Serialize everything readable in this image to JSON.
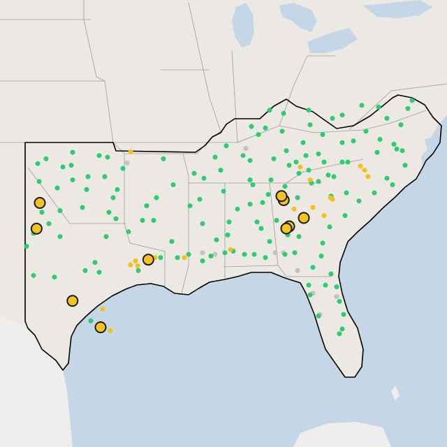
{
  "map": {
    "colors": {
      "water": "#c5d7e6",
      "land": "#ece8e3",
      "land_outside": "#efeeec",
      "state_border": "#9b9b9b",
      "region_border": "#000000",
      "green_dot": "#2ecc71",
      "yellow_dot": "#f4c01a",
      "gray_dot": "#c2c2c2",
      "large_dot_fill": "#f6c21c",
      "large_dot_stroke": "#1a1a1a"
    },
    "legend": []
  },
  "markers": {
    "large": [
      {
        "lon": -101.85,
        "lat": 33.58
      },
      {
        "lon": -102.08,
        "lat": 31.99
      },
      {
        "lon": -94.08,
        "lat": 30.08
      },
      {
        "lon": -99.51,
        "lat": 27.53
      },
      {
        "lon": -97.5,
        "lat": 25.9
      },
      {
        "lon": -84.39,
        "lat": 33.75
      },
      {
        "lon": -84.55,
        "lat": 34.0
      },
      {
        "lon": -84.0,
        "lat": 32.13
      },
      {
        "lon": -82.95,
        "lat": 32.65
      },
      {
        "lon": -84.2,
        "lat": 32.0
      }
    ],
    "yellow": [
      {
        "lon": -95.34,
        "lat": 36.73
      },
      {
        "lon": -95.0,
        "lat": 30.0
      },
      {
        "lon": -94.85,
        "lat": 29.7
      },
      {
        "lon": -95.36,
        "lat": 29.75
      },
      {
        "lon": -93.6,
        "lat": 30.2
      },
      {
        "lon": -91.5,
        "lat": 30.2
      },
      {
        "lon": -88.2,
        "lat": 30.7
      },
      {
        "lon": -97.35,
        "lat": 27.02
      },
      {
        "lon": -96.8,
        "lat": 25.7
      },
      {
        "lon": -83.65,
        "lat": 33.2
      },
      {
        "lon": -82.3,
        "lat": 33.3
      },
      {
        "lon": -80.9,
        "lat": 33.8
      },
      {
        "lon": -81.05,
        "lat": 33.9
      },
      {
        "lon": -81.5,
        "lat": 32.8
      },
      {
        "lon": -78.6,
        "lat": 35.6
      },
      {
        "lon": -78.35,
        "lat": 35.2
      },
      {
        "lon": -78.9,
        "lat": 35.85
      },
      {
        "lon": -83.2,
        "lat": 35.8
      },
      {
        "lon": -82.5,
        "lat": 35.0
      }
    ],
    "gray": [
      {
        "lon": -87.1,
        "lat": 36.95
      },
      {
        "lon": -95.6,
        "lat": 36.05
      },
      {
        "lon": -85.0,
        "lat": 30.5
      },
      {
        "lon": -84.4,
        "lat": 30.5
      },
      {
        "lon": -83.4,
        "lat": 29.4
      },
      {
        "lon": -82.3,
        "lat": 28.0
      },
      {
        "lon": -81.8,
        "lat": 26.7
      },
      {
        "lon": -80.6,
        "lat": 27.8
      },
      {
        "lon": -84.6,
        "lat": 34.1
      },
      {
        "lon": -89.3,
        "lat": 30.4
      },
      {
        "lon": -90.2,
        "lat": 30.5
      }
    ],
    "green": [
      {
        "lon": -102.0,
        "lat": 36.0
      },
      {
        "lon": -101.4,
        "lat": 36.3
      },
      {
        "lon": -100.2,
        "lat": 35.8
      },
      {
        "lon": -99.5,
        "lat": 36.7
      },
      {
        "lon": -99.6,
        "lat": 35.9
      },
      {
        "lon": -99.5,
        "lat": 35.0
      },
      {
        "lon": -98.4,
        "lat": 35.2
      },
      {
        "lon": -97.6,
        "lat": 36.5
      },
      {
        "lon": -97.2,
        "lat": 35.2
      },
      {
        "lon": -95.9,
        "lat": 35.7
      },
      {
        "lon": -96.3,
        "lat": 34.4
      },
      {
        "lon": -98.5,
        "lat": 34.4
      },
      {
        "lon": -100.6,
        "lat": 34.5
      },
      {
        "lon": -101.9,
        "lat": 34.9
      },
      {
        "lon": -101.7,
        "lat": 33.0
      },
      {
        "lon": -101.2,
        "lat": 32.3
      },
      {
        "lon": -100.4,
        "lat": 33.1
      },
      {
        "lon": -98.8,
        "lat": 33.3
      },
      {
        "lon": -96.9,
        "lat": 33.0
      },
      {
        "lon": -96.4,
        "lat": 32.6
      },
      {
        "lon": -102.3,
        "lat": 29.1
      },
      {
        "lon": -100.8,
        "lat": 29.0
      },
      {
        "lon": -98.6,
        "lat": 29.4
      },
      {
        "lon": -97.9,
        "lat": 29.9
      },
      {
        "lon": -97.6,
        "lat": 29.3
      },
      {
        "lon": -94.8,
        "lat": 29.4
      },
      {
        "lon": -93.2,
        "lat": 30.2
      },
      {
        "lon": -92.0,
        "lat": 30.2
      },
      {
        "lon": -91.2,
        "lat": 30.4
      },
      {
        "lon": -90.2,
        "lat": 30.0
      },
      {
        "lon": -89.6,
        "lat": 30.3
      },
      {
        "lon": -88.6,
        "lat": 30.5
      },
      {
        "lon": -88.0,
        "lat": 30.6
      },
      {
        "lon": -92.4,
        "lat": 31.2
      },
      {
        "lon": -93.7,
        "lat": 32.5
      },
      {
        "lon": -93.5,
        "lat": 33.9
      },
      {
        "lon": -92.3,
        "lat": 34.7
      },
      {
        "lon": -93.0,
        "lat": 36.3
      },
      {
        "lon": -90.8,
        "lat": 35.4
      },
      {
        "lon": -90.1,
        "lat": 35.1
      },
      {
        "lon": -90.2,
        "lat": 32.3
      },
      {
        "lon": -88.7,
        "lat": 34.3
      },
      {
        "lon": -88.3,
        "lat": 32.4
      },
      {
        "lon": -86.8,
        "lat": 33.5
      },
      {
        "lon": -86.3,
        "lat": 32.4
      },
      {
        "lon": -85.4,
        "lat": 31.2
      },
      {
        "lon": -86.6,
        "lat": 34.7
      },
      {
        "lon": -87.3,
        "lat": 36.5
      },
      {
        "lon": -86.8,
        "lat": 36.2
      },
      {
        "lon": -85.3,
        "lat": 35.0
      },
      {
        "lon": -84.0,
        "lat": 35.9
      },
      {
        "lon": -82.8,
        "lat": 36.5
      },
      {
        "lon": -84.5,
        "lat": 38.0
      },
      {
        "lon": -85.7,
        "lat": 38.2
      },
      {
        "lon": -84.4,
        "lat": 39.1
      },
      {
        "lon": -86.2,
        "lat": 37.8
      },
      {
        "lon": -82.5,
        "lat": 38.4
      },
      {
        "lon": -83.0,
        "lat": 37.3
      },
      {
        "lon": -81.6,
        "lat": 37.8
      },
      {
        "lon": -80.2,
        "lat": 39.0
      },
      {
        "lon": -79.4,
        "lat": 37.4
      },
      {
        "lon": -77.5,
        "lat": 37.5
      },
      {
        "lon": -77.0,
        "lat": 38.8
      },
      {
        "lon": -76.3,
        "lat": 36.9
      },
      {
        "lon": -76.5,
        "lat": 37.2
      },
      {
        "lon": -78.5,
        "lat": 38.0
      },
      {
        "lon": -77.7,
        "lat": 36.7
      },
      {
        "lon": -80.2,
        "lat": 36.1
      },
      {
        "lon": -80.8,
        "lat": 35.2
      },
      {
        "lon": -79.8,
        "lat": 36.1
      },
      {
        "lon": -77.9,
        "lat": 34.2
      },
      {
        "lon": -77.0,
        "lat": 35.1
      },
      {
        "lon": -79.0,
        "lat": 33.7
      },
      {
        "lon": -80.0,
        "lat": 32.8
      },
      {
        "lon": -81.1,
        "lat": 32.1
      },
      {
        "lon": -81.6,
        "lat": 31.1
      },
      {
        "lon": -81.7,
        "lat": 30.3
      },
      {
        "lon": -81.0,
        "lat": 29.2
      },
      {
        "lon": -80.6,
        "lat": 28.4
      },
      {
        "lon": -80.4,
        "lat": 27.5
      },
      {
        "lon": -80.1,
        "lat": 26.7
      },
      {
        "lon": -80.2,
        "lat": 25.8
      },
      {
        "lon": -80.4,
        "lat": 25.5
      },
      {
        "lon": -82.5,
        "lat": 27.9
      },
      {
        "lon": -82.6,
        "lat": 28.5
      },
      {
        "lon": -81.4,
        "lat": 28.5
      },
      {
        "lon": -82.3,
        "lat": 29.6
      },
      {
        "lon": -84.3,
        "lat": 30.4
      },
      {
        "lon": -85.7,
        "lat": 30.2
      },
      {
        "lon": -87.2,
        "lat": 30.4
      },
      {
        "lon": -86.5,
        "lat": 30.4
      },
      {
        "lon": -83.6,
        "lat": 30.5
      },
      {
        "lon": -81.9,
        "lat": 26.6
      },
      {
        "lon": -83.3,
        "lat": 31.5
      },
      {
        "lon": -84.1,
        "lat": 31.6
      },
      {
        "lon": -85.5,
        "lat": 34.1
      },
      {
        "lon": -83.4,
        "lat": 33.9
      },
      {
        "lon": -82.4,
        "lat": 34.8
      },
      {
        "lon": -81.9,
        "lat": 34.9
      },
      {
        "lon": -81.0,
        "lat": 34.0
      },
      {
        "lon": -79.9,
        "lat": 34.2
      },
      {
        "lon": -81.2,
        "lat": 35.3
      },
      {
        "lon": -82.6,
        "lat": 35.6
      },
      {
        "lon": -83.5,
        "lat": 36.1
      },
      {
        "lon": -80.2,
        "lat": 37.3
      },
      {
        "lon": -81.9,
        "lat": 36.6
      },
      {
        "lon": -76.6,
        "lat": 34.7
      },
      {
        "lon": -75.7,
        "lat": 35.9
      },
      {
        "lon": -75.9,
        "lat": 36.8
      },
      {
        "lon": -76.0,
        "lat": 38.4
      },
      {
        "lon": -75.5,
        "lat": 39.4
      },
      {
        "lon": -75.2,
        "lat": 39.9
      },
      {
        "lon": -77.6,
        "lat": 39.5
      },
      {
        "lon": -78.8,
        "lat": 39.6
      },
      {
        "lon": -80.9,
        "lat": 38.8
      },
      {
        "lon": -82.6,
        "lat": 39.3
      },
      {
        "lon": -85.4,
        "lat": 39.3
      },
      {
        "lon": -86.7,
        "lat": 38.3
      },
      {
        "lon": -88.5,
        "lat": 37.1
      },
      {
        "lon": -89.3,
        "lat": 36.4
      },
      {
        "lon": -88.9,
        "lat": 35.6
      },
      {
        "lon": -90.4,
        "lat": 33.8
      },
      {
        "lon": -91.1,
        "lat": 33.4
      },
      {
        "lon": -89.2,
        "lat": 31.3
      },
      {
        "lon": -88.4,
        "lat": 31.6
      },
      {
        "lon": -87.7,
        "lat": 33.2
      },
      {
        "lon": -85.9,
        "lat": 33.6
      },
      {
        "lon": -86.0,
        "lat": 32.0
      },
      {
        "lon": -84.9,
        "lat": 32.5
      },
      {
        "lon": -86.8,
        "lat": 35.0
      },
      {
        "lon": -85.1,
        "lat": 36.3
      },
      {
        "lon": -84.2,
        "lat": 36.8
      },
      {
        "lon": -84.3,
        "lat": 34.6
      },
      {
        "lon": -83.3,
        "lat": 35.4
      },
      {
        "lon": -81.5,
        "lat": 36.1
      },
      {
        "lon": -97.5,
        "lat": 25.9
      },
      {
        "lon": -98.2,
        "lat": 26.3
      },
      {
        "lon": -102.3,
        "lat": 31.7
      },
      {
        "lon": -100.4,
        "lat": 31.5
      },
      {
        "lon": -102.8,
        "lat": 30.9
      },
      {
        "lon": -97.1,
        "lat": 31.5
      },
      {
        "lon": -95.5,
        "lat": 31.8
      },
      {
        "lon": -94.5,
        "lat": 32.5
      },
      {
        "lon": -94.2,
        "lat": 33.4
      },
      {
        "lon": -96.6,
        "lat": 33.9
      },
      {
        "lon": -97.0,
        "lat": 36.4
      }
    ]
  }
}
